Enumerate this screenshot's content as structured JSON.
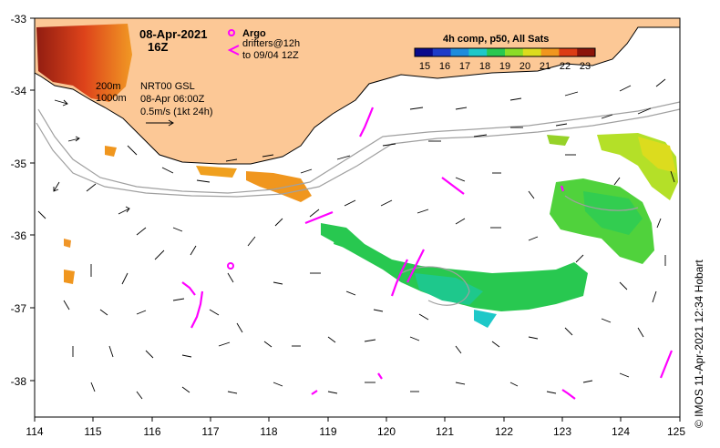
{
  "header": {
    "date": "08-Apr-2021",
    "time": "16Z"
  },
  "legend": {
    "argo_label": "Argo",
    "drifters_label_1": "drifters@12h",
    "drifters_label_2": "to 09/04 12Z",
    "argo_color": "#ff00ff",
    "drifter_color": "#ff00ff"
  },
  "colorbar": {
    "title": "4h comp, p50, All Sats",
    "ticks": [
      "15",
      "16",
      "17",
      "18",
      "19",
      "20",
      "21",
      "22",
      "23"
    ],
    "colors": [
      "#0a0a8c",
      "#1e3cc8",
      "#1e8cdc",
      "#1ec8c8",
      "#28c850",
      "#8cdc28",
      "#dcdc1e",
      "#f0961e",
      "#dc3c14",
      "#8c140a"
    ]
  },
  "currents_info": {
    "isobath_1": "200m",
    "isobath_2": "1000m",
    "source": "NRT00 GSL",
    "time": "08-Apr 06:00Z",
    "scale": "0.5m/s (1kt 24h)"
  },
  "axes": {
    "lon_ticks": [
      "114",
      "115",
      "116",
      "117",
      "118",
      "119",
      "120",
      "121",
      "122",
      "123",
      "124",
      "125"
    ],
    "lat_ticks": [
      "-33",
      "-34",
      "-35",
      "-36",
      "-37",
      "-38"
    ],
    "lon_range": [
      114,
      125
    ],
    "lat_range": [
      -38.5,
      -33
    ]
  },
  "credit": "© IMOS 11-Apr-2021 12:34 Hobart",
  "colors": {
    "land": "#fcc896",
    "arrow": "#000000",
    "isobath": "#a0a0a0"
  }
}
